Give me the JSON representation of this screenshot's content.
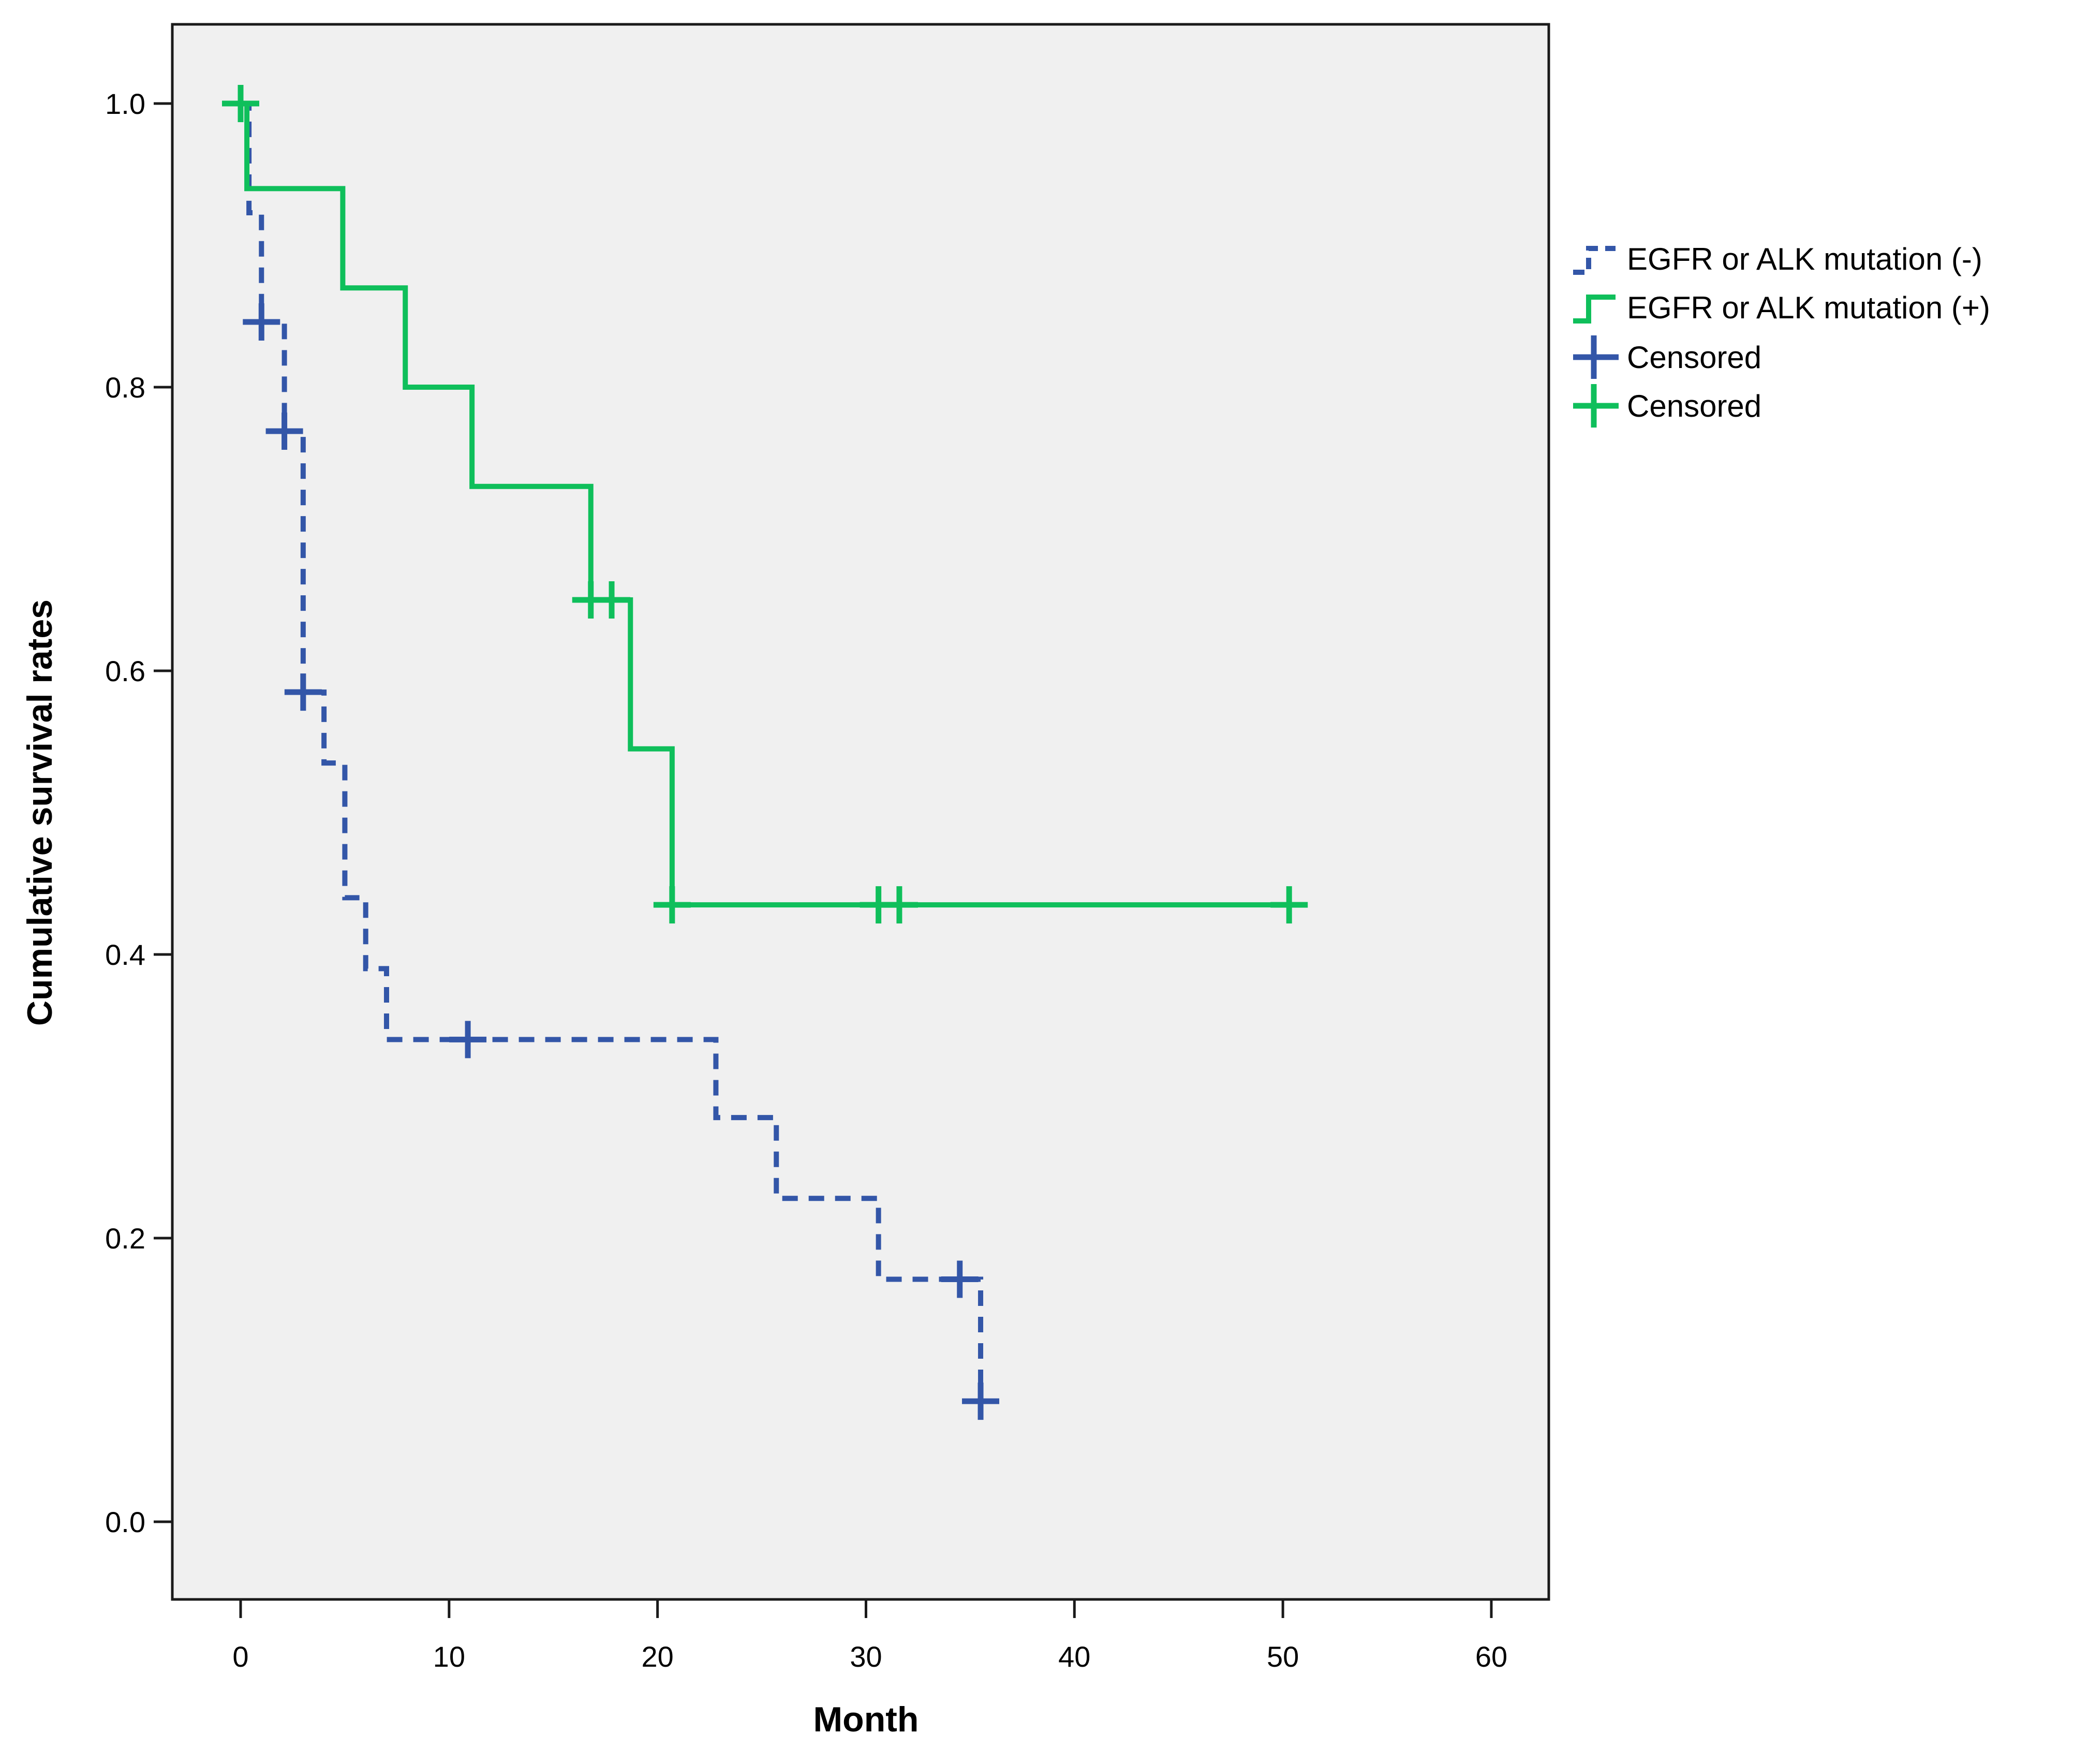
{
  "figure": {
    "background": "#ffffff",
    "plot_background": "#f0f0f0",
    "frame_color": "#1a1a1a"
  },
  "chart_data": {
    "type": "line",
    "subtype": "kaplan-meier-step",
    "title": "",
    "xlabel": "Month",
    "ylabel": "Cumulative survival rates",
    "x_ticks": [
      0,
      10,
      20,
      30,
      40,
      50,
      60
    ],
    "x_tick_labels": [
      "0",
      "10",
      "20",
      "30",
      "40",
      "50",
      "60"
    ],
    "y_ticks": [
      0.0,
      0.2,
      0.4,
      0.6,
      0.8,
      1.0
    ],
    "y_tick_labels": [
      "0.0",
      "0.2",
      "0.4",
      "0.6",
      "0.8",
      "1.0"
    ],
    "xlim": [
      -3.3,
      62.7
    ],
    "ylim": [
      -0.055,
      1.056
    ],
    "grid": false,
    "legend_position": "right-outside",
    "series": [
      {
        "name": "EGFR or ALK mutation (-)",
        "color": "#3356a8",
        "line_style": "dashed",
        "steps": [
          [
            0,
            1.0
          ],
          [
            0.4,
            0.923
          ],
          [
            1.0,
            0.846
          ],
          [
            2.1,
            0.769
          ],
          [
            3.0,
            0.585
          ],
          [
            4.0,
            0.535
          ],
          [
            5.0,
            0.44
          ],
          [
            6.0,
            0.39
          ],
          [
            7.0,
            0.34
          ],
          [
            22.8,
            0.285
          ],
          [
            25.7,
            0.228
          ],
          [
            30.6,
            0.171
          ],
          [
            35.5,
            0.085
          ]
        ],
        "end_time": 36.3,
        "censored": [
          [
            1.0,
            0.846
          ],
          [
            2.1,
            0.769
          ],
          [
            3.0,
            0.585
          ],
          [
            10.9,
            0.34
          ],
          [
            34.5,
            0.171
          ],
          [
            35.5,
            0.085
          ]
        ]
      },
      {
        "name": "EGFR or ALK mutation (+)",
        "color": "#0fbf5b",
        "line_style": "solid",
        "steps": [
          [
            0,
            1.0
          ],
          [
            0.3,
            0.94
          ],
          [
            4.9,
            0.87
          ],
          [
            7.9,
            0.8
          ],
          [
            11.1,
            0.73
          ],
          [
            16.8,
            0.65
          ],
          [
            18.7,
            0.545
          ],
          [
            20.7,
            0.435
          ]
        ],
        "end_time": 50.8,
        "censored": [
          [
            0,
            1.0
          ],
          [
            16.8,
            0.65
          ],
          [
            17.8,
            0.65
          ],
          [
            20.7,
            0.435
          ],
          [
            30.6,
            0.435
          ],
          [
            31.6,
            0.435
          ],
          [
            50.3,
            0.435
          ]
        ]
      }
    ],
    "legend": [
      {
        "label": "EGFR or ALK mutation (-)",
        "glyph": "step-line-dashed",
        "color": "#3356a8"
      },
      {
        "label": "EGFR or ALK mutation (+)",
        "glyph": "step-line-solid",
        "color": "#0fbf5b"
      },
      {
        "label": "Censored",
        "glyph": "plus-cross",
        "color": "#3356a8"
      },
      {
        "label": "Censored",
        "glyph": "plus-cross",
        "color": "#0fbf5b"
      }
    ]
  }
}
